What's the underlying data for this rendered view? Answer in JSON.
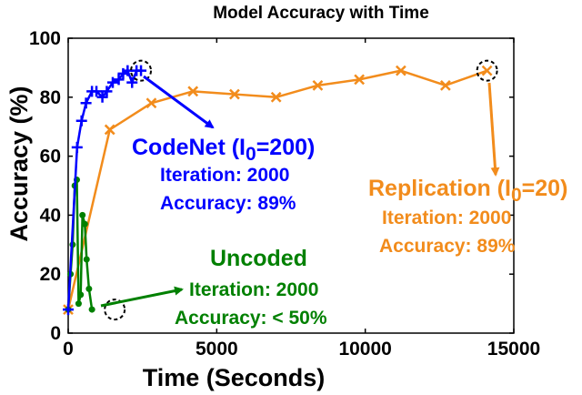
{
  "chart_data": {
    "type": "line",
    "title": "Model Accuracy with Time",
    "xlabel": "Time (Seconds)",
    "ylabel": "Accuracy (%)",
    "xlim": [
      0,
      15000
    ],
    "ylim": [
      0,
      100
    ],
    "xticks": [
      0,
      5000,
      10000,
      15000
    ],
    "yticks": [
      0,
      20,
      40,
      60,
      80,
      100
    ],
    "grid": false,
    "series": [
      {
        "name": "CodeNet",
        "color": "#0000ff",
        "marker": "plus",
        "x": [
          0,
          300,
          450,
          600,
          800,
          950,
          1150,
          1300,
          1500,
          1700,
          1850,
          2000,
          2150,
          2300,
          2450
        ],
        "y": [
          8,
          63,
          72,
          78,
          82,
          82,
          80,
          82,
          85,
          86,
          88,
          89,
          85,
          89,
          89
        ]
      },
      {
        "name": "Replication",
        "color": "#f28c1c",
        "marker": "x",
        "x": [
          0,
          1400,
          2800,
          4200,
          5600,
          7000,
          8400,
          9800,
          11200,
          12700,
          14100
        ],
        "y": [
          8,
          69,
          78,
          82,
          81,
          80,
          84,
          86,
          89,
          84,
          89
        ]
      },
      {
        "name": "Uncoded",
        "color": "#008000",
        "marker": "dot",
        "x": [
          0,
          80,
          150,
          220,
          290,
          350,
          420,
          480,
          560,
          620,
          700,
          800
        ],
        "y": [
          8,
          20,
          30,
          50,
          52,
          10,
          13,
          40,
          37,
          25,
          15,
          8
        ]
      }
    ],
    "annotations": {
      "codenet": {
        "title": "CodeNet (I",
        "sub": "0",
        "title_end": "=200)",
        "line1": "Iteration: 2000",
        "line2": "Accuracy: 89%"
      },
      "replication": {
        "title": "Replication (I",
        "sub": "0",
        "title_end": "=20)",
        "line1": "Iteration: 2000",
        "line2": "Accuracy: 89%"
      },
      "uncoded": {
        "title": "Uncoded",
        "line1": "Iteration: 2000",
        "line2": "Accuracy: < 50%"
      }
    }
  }
}
